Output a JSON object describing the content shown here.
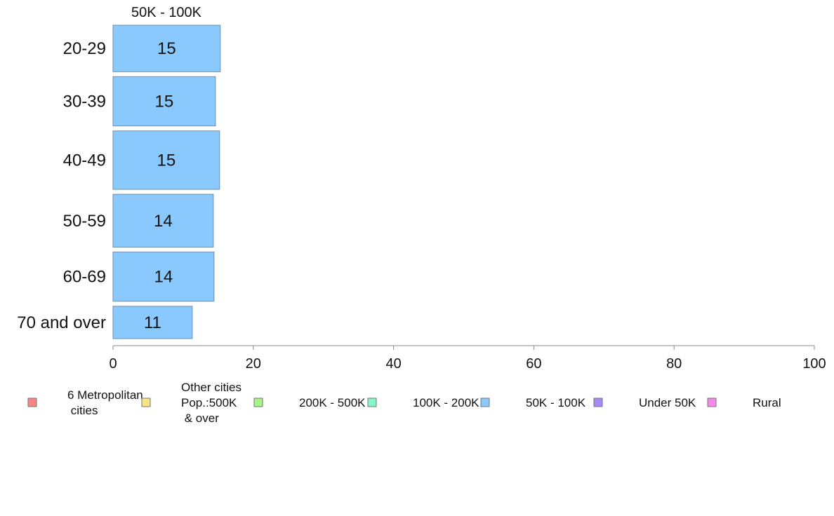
{
  "chart_data": {
    "type": "bar",
    "orientation": "horizontal",
    "title": "50K - 100K",
    "categories": [
      "20-29",
      "30-39",
      "40-49",
      "50-59",
      "60-69",
      "70 and over"
    ],
    "series": [
      {
        "name": "50K - 100K",
        "values": [
          15.3,
          14.6,
          15.2,
          14.3,
          14.4,
          11.3
        ],
        "labels": [
          "15",
          "15",
          "15",
          "14",
          "14",
          "11"
        ]
      }
    ],
    "bar_weights": [
      66,
      70,
      83,
      75,
      70,
      46
    ],
    "xlim": [
      0,
      100
    ],
    "xticks": [
      "0",
      "20",
      "40",
      "60",
      "80",
      "100"
    ],
    "grid": false,
    "legend_placement": "bottom",
    "legend": [
      {
        "label": [
          "6 Metropolitan",
          " cities"
        ],
        "color": "#f4877f"
      },
      {
        "label": [
          "Other cities",
          "Pop.:500K",
          " & over"
        ],
        "color": "#f7e488"
      },
      {
        "label": [
          "200K - 500K"
        ],
        "color": "#a6f586"
      },
      {
        "label": [
          "100K - 200K"
        ],
        "color": "#86f7c9"
      },
      {
        "label": [
          "50K - 100K"
        ],
        "color": "#8ac9fe"
      },
      {
        "label": [
          "Under 50K"
        ],
        "color": "#a68af7"
      },
      {
        "label": [
          "Rural"
        ],
        "color": "#f587e6"
      }
    ],
    "bar_color": "#8ac9fe",
    "bar_stroke": "#6f8fae"
  }
}
